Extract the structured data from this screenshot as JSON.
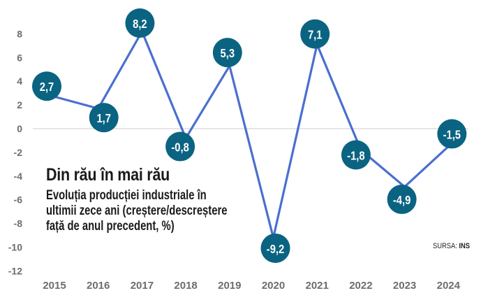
{
  "chart_data": {
    "type": "line",
    "title": "Din rău în mai rău",
    "subtitle_lines": [
      "Evoluția producției industriale în",
      "ultimii zece ani (creștere/descreștere",
      "față de anul precedent, %)"
    ],
    "xlabel": "",
    "ylabel": "",
    "categories": [
      "2015",
      "2016",
      "2017",
      "2018",
      "2019",
      "2020",
      "2021",
      "2022",
      "2023",
      "2024"
    ],
    "series": [
      {
        "name": "Evoluția producției industriale (%)",
        "values": [
          2.7,
          1.7,
          8.2,
          -0.8,
          5.3,
          -9.2,
          7.1,
          -1.8,
          -4.9,
          -1.5
        ],
        "labels": [
          "2,7",
          "1,7",
          "8,2",
          "-0,8",
          "5,3",
          "-9,2",
          "7,1",
          "-1,8",
          "-4,9",
          "-1,5"
        ]
      }
    ],
    "yticks": [
      8,
      6,
      4,
      2,
      0,
      -2,
      -4,
      -6,
      -8,
      -10,
      -12
    ],
    "ylim": [
      -12,
      8
    ],
    "grid": "zero-line only",
    "legend": "none",
    "source_label": "SURSA:",
    "source_value": "INS",
    "colors": {
      "line": "#4a6fd0",
      "marker": "#0b6382",
      "marker_text": "#ffffff",
      "axis_text": "#6d6d6d",
      "zero_line": "#e6e6e6",
      "title": "#1a1a1a"
    }
  }
}
